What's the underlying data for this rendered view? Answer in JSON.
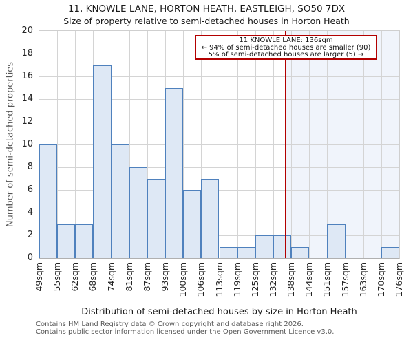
{
  "title": "11, KNOWLE LANE, HORTON HEATH, EASTLEIGH, SO50 7DX",
  "subtitle": "Size of property relative to semi-detached houses in Horton Heath",
  "annotation": {
    "line1": "11 KNOWLE LANE: 136sqm",
    "line2": "← 94% of semi-detached houses are smaller (90)",
    "line3": "5% of semi-detached houses are larger (5) →"
  },
  "chart_data": {
    "type": "bar",
    "subtype": "histogram",
    "title": "11, KNOWLE LANE, HORTON HEATH, EASTLEIGH, SO50 7DX",
    "xlabel": "Distribution of semi-detached houses by size in Horton Heath",
    "ylabel": "Number of semi-detached properties",
    "bin_edge_labels": [
      "49sqm",
      "55sqm",
      "62sqm",
      "68sqm",
      "74sqm",
      "81sqm",
      "87sqm",
      "93sqm",
      "100sqm",
      "106sqm",
      "113sqm",
      "119sqm",
      "125sqm",
      "132sqm",
      "138sqm",
      "144sqm",
      "151sqm",
      "157sqm",
      "163sqm",
      "170sqm",
      "176sqm"
    ],
    "bin_edges_sqm": [
      49,
      55,
      62,
      68,
      74,
      81,
      87,
      93,
      100,
      106,
      113,
      119,
      125,
      132,
      138,
      144,
      151,
      157,
      163,
      170,
      176
    ],
    "values": [
      10,
      3,
      3,
      17,
      10,
      8,
      7,
      15,
      6,
      7,
      1,
      1,
      2,
      2,
      1,
      0,
      3,
      0,
      0,
      1
    ],
    "ylim": [
      0,
      20
    ],
    "ytick_step": 2,
    "grid": true,
    "legend": "none",
    "marker": {
      "label": "136sqm",
      "value_sqm": 136,
      "smaller_count": 90,
      "smaller_pct": 94,
      "larger_count": 5,
      "larger_pct": 5
    }
  },
  "colors": {
    "bar_fill": "#dee8f5",
    "bar_edge": "#4f81bd",
    "marker_line": "#b30000",
    "annotation_border": "#b30000",
    "shade_right_of_marker": "#f0f4fb",
    "gridline": "#d4d4d4",
    "axis_line": "#b0b0b0"
  },
  "footer": {
    "line1": "Contains HM Land Registry data © Crown copyright and database right 2026.",
    "line2": "Contains public sector information licensed under the Open Government Licence v3.0."
  }
}
